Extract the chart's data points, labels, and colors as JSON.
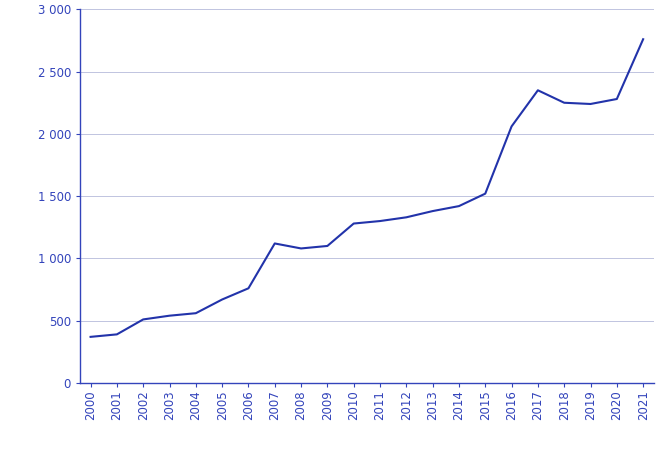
{
  "years": [
    2000,
    2001,
    2002,
    2003,
    2004,
    2005,
    2006,
    2007,
    2008,
    2009,
    2010,
    2011,
    2012,
    2013,
    2014,
    2015,
    2016,
    2017,
    2018,
    2019,
    2020,
    2021
  ],
  "values": [
    370,
    390,
    510,
    540,
    560,
    670,
    760,
    1120,
    1080,
    1100,
    1280,
    1300,
    1330,
    1380,
    1420,
    1520,
    2060,
    2350,
    2250,
    2240,
    2280,
    2760
  ],
  "line_color": "#2233AA",
  "background_color": "#ffffff",
  "grid_color": "#c0c4e0",
  "spine_color": "#3344BB",
  "ylim": [
    0,
    3000
  ],
  "yticks": [
    0,
    500,
    1000,
    1500,
    2000,
    2500,
    3000
  ],
  "tick_color": "#3344BB",
  "label_fontsize": 8.5
}
